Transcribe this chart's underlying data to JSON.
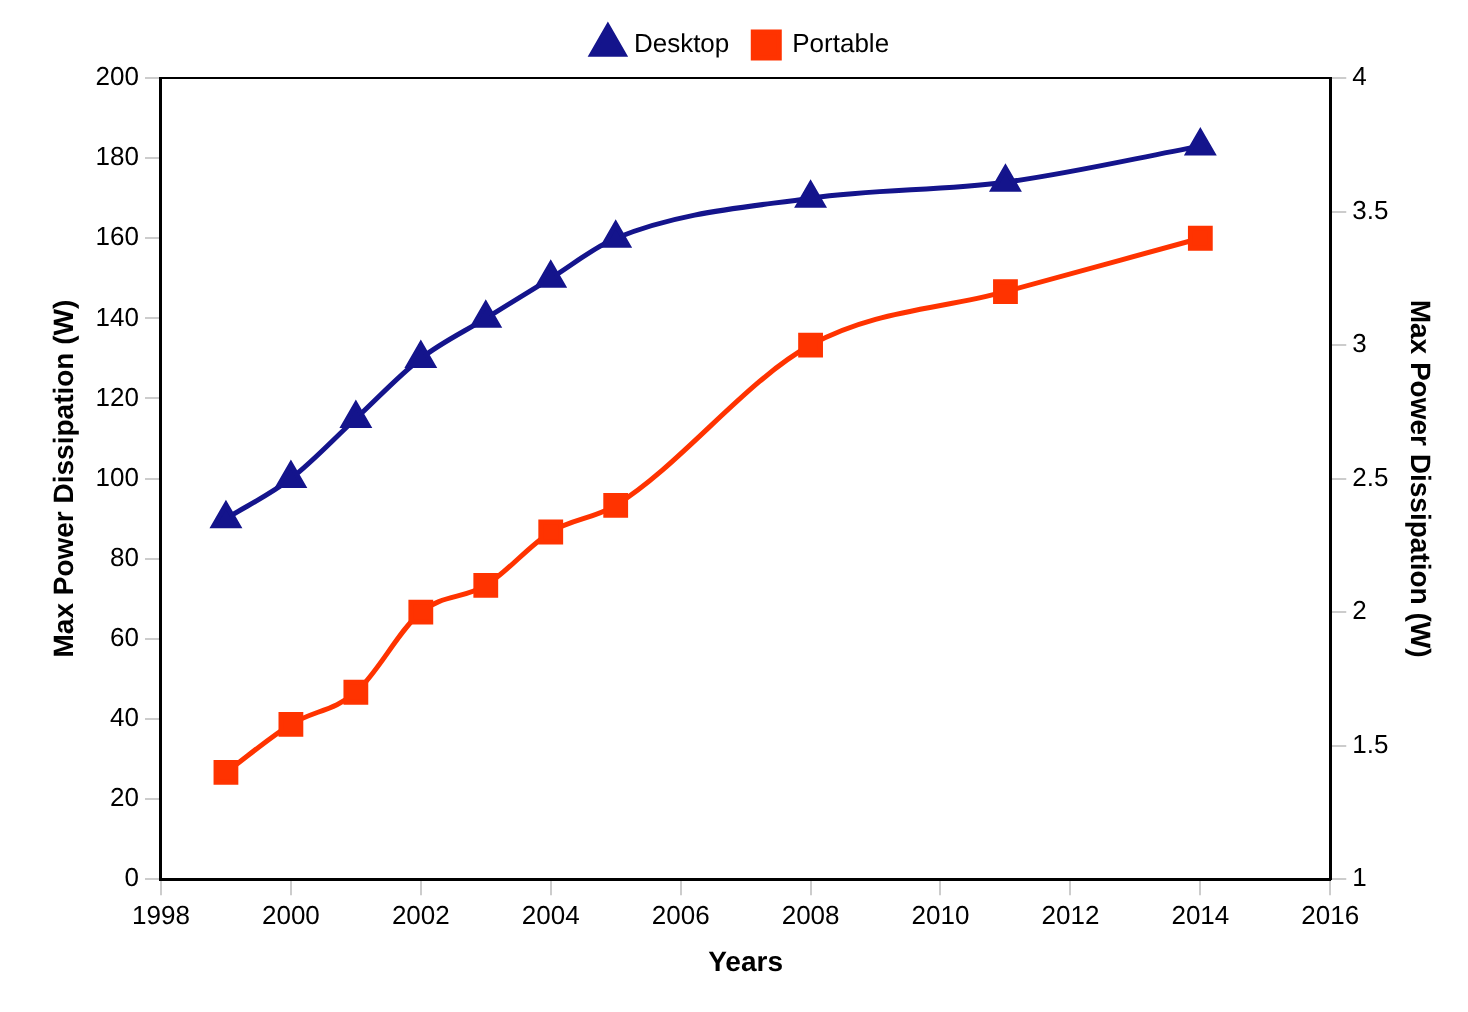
{
  "chart_data": {
    "type": "line",
    "xlabel": "Years",
    "ylabel": "Max Power Dissipation (W)",
    "y2label": "Max Power Dissipation (W)",
    "x": [
      1999,
      2000,
      2001,
      2002,
      2003,
      2004,
      2005,
      2008,
      2011,
      2014
    ],
    "series": [
      {
        "name": "Desktop",
        "color": "#14148c",
        "marker": "triangle",
        "values": [
          90,
          100,
          115,
          130,
          140,
          150,
          160,
          170,
          174,
          183
        ]
      },
      {
        "name": "Portable",
        "color": "#ff3300",
        "marker": "square",
        "axis": "y2",
        "values": [
          1.4,
          1.58,
          1.7,
          2.0,
          2.1,
          2.3,
          2.4,
          3.0,
          3.2,
          3.4
        ]
      }
    ],
    "xlim": [
      1998,
      2016
    ],
    "xticks": [
      1998,
      2000,
      2002,
      2004,
      2006,
      2008,
      2010,
      2012,
      2014,
      2016
    ],
    "ylim": [
      0,
      200
    ],
    "yticks": [
      0,
      20,
      40,
      60,
      80,
      100,
      120,
      140,
      160,
      180,
      200
    ],
    "y2lim": [
      1,
      4
    ],
    "y2ticks": [
      1,
      1.5,
      2,
      2.5,
      3,
      3.5,
      4
    ],
    "legend": "top",
    "grid": false
  }
}
